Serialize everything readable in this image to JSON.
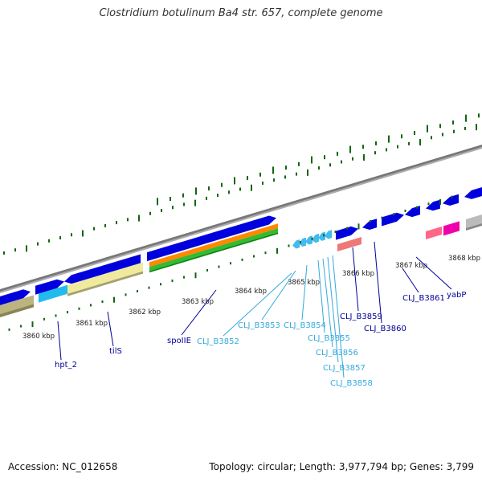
{
  "title": "Clostridium botulinum Ba4 str. 657, complete genome",
  "footer": {
    "accession": "Accession: NC_012658",
    "topology": "Topology: circular; Length: 3,977,794 bp; Genes: 3,799"
  },
  "colors": {
    "backbone": "#888888",
    "forward_gene": "#0000dd",
    "reverse_gene_small": "#44bbee",
    "gene_label": "#000099",
    "locus_label": "#33aadd",
    "tick": "#116611",
    "khaki": "#bbb480",
    "cyan": "#22bbee",
    "pale_yellow": "#f0ea9e",
    "orange": "#ff8800",
    "green": "#33bb33",
    "salmon": "#ee7777",
    "magenta": "#ee00aa",
    "grey_feature": "#bbbbbb"
  },
  "scale_labels": [
    "3860 kbp",
    "3861 kbp",
    "3862 kbp",
    "3863 kbp",
    "3864 kbp",
    "3865 kbp",
    "3866 kbp",
    "3867 kbp",
    "3868 kbp"
  ],
  "gene_labels": [
    {
      "text": "hpt_2",
      "kind": "gene"
    },
    {
      "text": "tilS",
      "kind": "gene"
    },
    {
      "text": "spoIIE",
      "kind": "gene"
    },
    {
      "text": "CLJ_B3852",
      "kind": "locus"
    },
    {
      "text": "CLJ_B3853",
      "kind": "locus"
    },
    {
      "text": "CLJ_B3854",
      "kind": "locus"
    },
    {
      "text": "CLJ_B3855",
      "kind": "locus"
    },
    {
      "text": "CLJ_B3856",
      "kind": "locus"
    },
    {
      "text": "CLJ_B3857",
      "kind": "locus"
    },
    {
      "text": "CLJ_B3858",
      "kind": "locus"
    },
    {
      "text": "CLJ_B3859",
      "kind": "gene"
    },
    {
      "text": "CLJ_B3860",
      "kind": "gene"
    },
    {
      "text": "CLJ_B3861",
      "kind": "gene"
    },
    {
      "text": "yabP",
      "kind": "gene"
    }
  ]
}
